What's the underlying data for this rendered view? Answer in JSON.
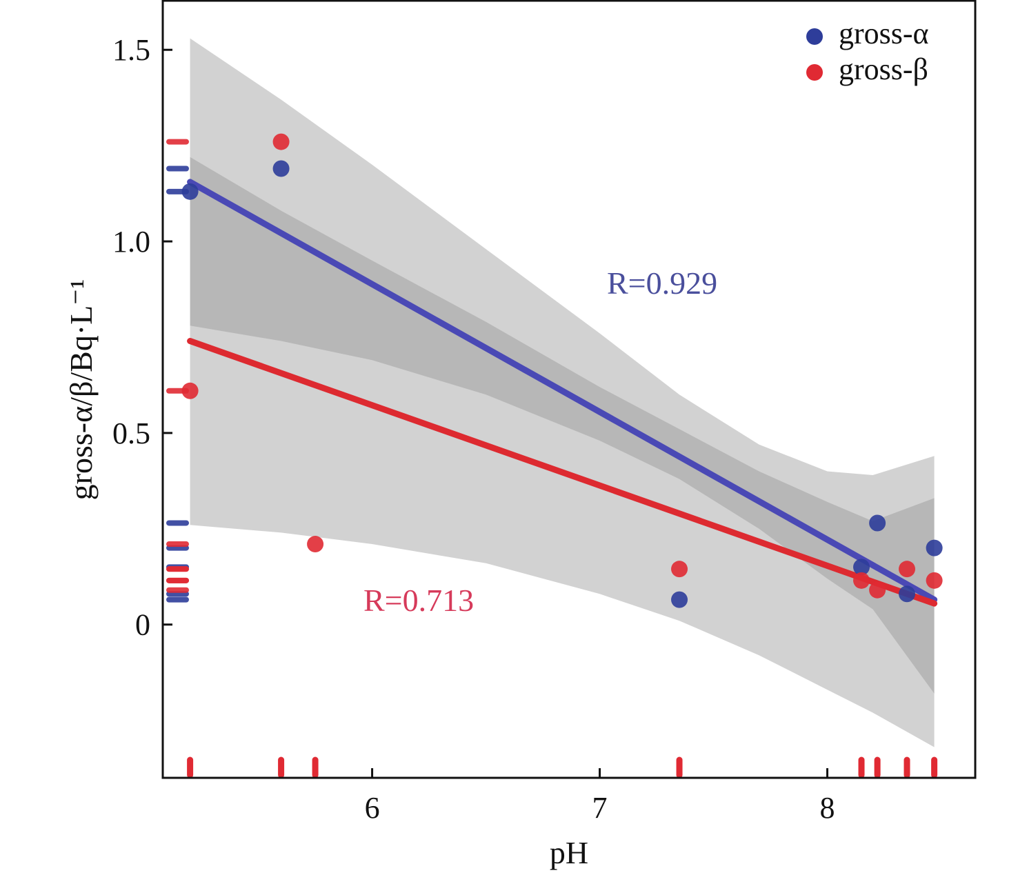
{
  "chart_data": {
    "type": "scatter",
    "xlabel": "pH",
    "ylabel": "gross-α/β/Bq·L⁻¹",
    "xlim": [
      5.08,
      8.65
    ],
    "ylim": [
      -0.4,
      1.63
    ],
    "xticks": [
      6,
      7,
      8
    ],
    "xtick_labels": [
      "6",
      "7",
      "8"
    ],
    "yticks": [
      0,
      0.5,
      1.0,
      1.5
    ],
    "ytick_labels": [
      "0",
      "0.5",
      "1.0",
      "1.5"
    ],
    "legend_position": "top-right",
    "series": [
      {
        "name": "gross-α",
        "color": "#2e3d9a",
        "points": [
          {
            "x": 5.2,
            "y": 1.13
          },
          {
            "x": 5.6,
            "y": 1.19
          },
          {
            "x": 7.35,
            "y": 0.065
          },
          {
            "x": 8.15,
            "y": 0.15
          },
          {
            "x": 8.22,
            "y": 0.265
          },
          {
            "x": 8.35,
            "y": 0.08
          },
          {
            "x": 8.47,
            "y": 0.2
          }
        ],
        "fit": {
          "x": [
            5.2,
            8.47
          ],
          "y": [
            1.155,
            0.065
          ]
        },
        "confidence_band": {
          "x": [
            5.2,
            5.6,
            6.0,
            6.5,
            7.0,
            7.35,
            7.7,
            8.0,
            8.2,
            8.47
          ],
          "lower": [
            0.78,
            0.74,
            0.69,
            0.6,
            0.48,
            0.38,
            0.25,
            0.12,
            0.04,
            -0.18
          ],
          "upper": [
            1.53,
            1.37,
            1.2,
            0.98,
            0.76,
            0.6,
            0.47,
            0.4,
            0.39,
            0.44
          ]
        },
        "annotation": "R=0.929"
      },
      {
        "name": "gross-β",
        "color": "#e02a33",
        "points": [
          {
            "x": 5.2,
            "y": 0.61
          },
          {
            "x": 5.6,
            "y": 1.26
          },
          {
            "x": 5.75,
            "y": 0.21
          },
          {
            "x": 7.35,
            "y": 0.145
          },
          {
            "x": 8.15,
            "y": 0.115
          },
          {
            "x": 8.22,
            "y": 0.09
          },
          {
            "x": 8.35,
            "y": 0.145
          },
          {
            "x": 8.47,
            "y": 0.115
          }
        ],
        "fit": {
          "x": [
            5.2,
            8.47
          ],
          "y": [
            0.74,
            0.055
          ]
        },
        "confidence_band": {
          "x": [
            5.2,
            5.6,
            6.0,
            6.5,
            7.0,
            7.35,
            7.7,
            8.0,
            8.2,
            8.47
          ],
          "lower": [
            0.26,
            0.24,
            0.21,
            0.16,
            0.08,
            0.01,
            -0.08,
            -0.17,
            -0.23,
            -0.32
          ],
          "upper": [
            1.22,
            1.08,
            0.95,
            0.79,
            0.62,
            0.51,
            0.4,
            0.32,
            0.27,
            0.33
          ]
        },
        "annotation": "R=0.713"
      }
    ],
    "rug_x_values": [
      5.2,
      5.6,
      5.75,
      7.35,
      8.15,
      8.22,
      8.35,
      8.47
    ]
  },
  "legend": {
    "items": [
      {
        "label": "gross-α",
        "color": "#2e3d9a"
      },
      {
        "label": "gross-β",
        "color": "#e02a33"
      }
    ]
  },
  "colors": {
    "band_outer": "#b9b9b9",
    "band_inner": "#8c8c8c",
    "axis": "#111111"
  }
}
